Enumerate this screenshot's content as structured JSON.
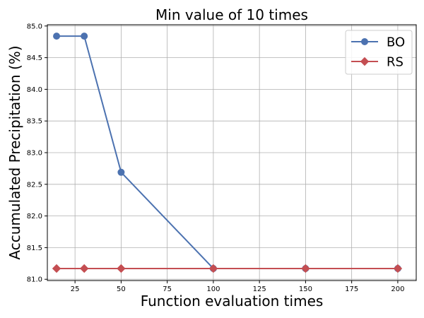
{
  "chart_data": {
    "type": "line",
    "title": "Min value of 10 times",
    "xlabel": "Function evaluation times",
    "ylabel": "Accumulated Precipitation (%)",
    "xlim": [
      10,
      210
    ],
    "ylim": [
      80.98,
      85.02
    ],
    "xticks": [
      25,
      50,
      75,
      100,
      125,
      150,
      175,
      200
    ],
    "yticks": [
      81.0,
      81.5,
      82.0,
      82.5,
      83.0,
      83.5,
      84.0,
      84.5,
      85.0
    ],
    "ytick_labels": [
      "81.0",
      "81.5",
      "82.0",
      "82.5",
      "83.0",
      "83.5",
      "84.0",
      "84.5",
      "85.0"
    ],
    "grid": true,
    "legend": "top-right",
    "series": [
      {
        "name": "BO",
        "marker": "circle",
        "color": "#4c72b0",
        "x": [
          15,
          30,
          50,
          100,
          150,
          200
        ],
        "y": [
          84.84,
          84.84,
          82.69,
          81.17,
          81.17,
          81.17
        ]
      },
      {
        "name": "RS",
        "marker": "diamond",
        "color": "#c44e52",
        "x": [
          15,
          30,
          50,
          100,
          150,
          200
        ],
        "y": [
          81.17,
          81.17,
          81.17,
          81.17,
          81.17,
          81.17
        ]
      }
    ]
  }
}
